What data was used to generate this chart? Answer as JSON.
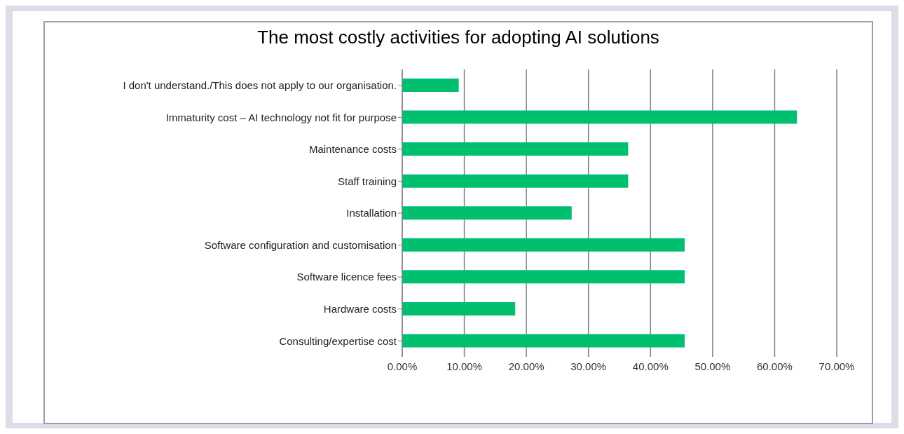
{
  "chart_data": {
    "type": "bar",
    "orientation": "horizontal",
    "title": "The most costly activities for adopting AI solutions",
    "categories": [
      "I don't understand./This does not apply to our organisation.",
      "Immaturity cost – AI technology not fit for purpose",
      "Maintenance costs",
      "Staff training",
      "Installation",
      "Software configuration and customisation",
      "Software licence fees",
      "Hardware costs",
      "Consulting/expertise cost"
    ],
    "values": [
      9.1,
      63.6,
      36.4,
      36.4,
      27.3,
      45.5,
      45.5,
      18.2,
      45.5
    ],
    "color": "#00c070",
    "xlim": [
      0,
      70
    ],
    "xticks": [
      {
        "value": 0,
        "label": "0.00%"
      },
      {
        "value": 10,
        "label": "10.00%"
      },
      {
        "value": 20,
        "label": "20.00%"
      },
      {
        "value": 30,
        "label": "30.00%"
      },
      {
        "value": 40,
        "label": "40.00%"
      },
      {
        "value": 50,
        "label": "50.00%"
      },
      {
        "value": 60,
        "label": "60.00%"
      },
      {
        "value": 70,
        "label": "70.00%"
      }
    ],
    "grid": "x"
  }
}
